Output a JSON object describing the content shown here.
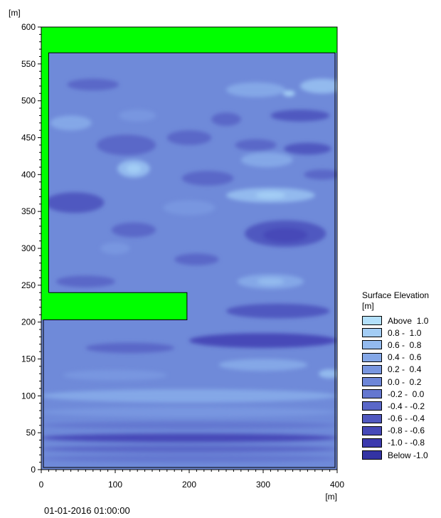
{
  "chart_data": {
    "type": "heatmap",
    "title": "",
    "xlabel": "[m]",
    "ylabel": "[m]",
    "xlim": [
      0,
      400
    ],
    "ylim": [
      0,
      600
    ],
    "x_ticks": [
      "0",
      "100",
      "200",
      "300",
      "400"
    ],
    "y_ticks": [
      "0",
      "50",
      "100",
      "150",
      "200",
      "250",
      "300",
      "350",
      "400",
      "450",
      "500",
      "550",
      "600"
    ],
    "legend_placement": "bottom-right",
    "legend_title": "Surface Elevation",
    "legend_unit": "[m]",
    "legend": [
      {
        "label": "Above  1.0",
        "color": "#b3e0fb"
      },
      {
        "label": "0.8 -  1.0",
        "color": "#a3cdf5"
      },
      {
        "label": "0.6 -  0.8",
        "color": "#93baee"
      },
      {
        "label": "0.4 -  0.6",
        "color": "#84a7e7"
      },
      {
        "label": "0.2 -  0.4",
        "color": "#7896e0"
      },
      {
        "label": "0.0 -  0.2",
        "color": "#6d86d8"
      },
      {
        "label": "-0.2 -  0.0",
        "color": "#6477d0"
      },
      {
        "label": "-0.4 - -0.2",
        "color": "#5a67c8"
      },
      {
        "label": "-0.6 - -0.4",
        "color": "#5058c0"
      },
      {
        "label": "-0.8 - -0.6",
        "color": "#4649b8"
      },
      {
        "label": "-1.0 - -0.8",
        "color": "#3c3aae"
      },
      {
        "label": "Below -1.0",
        "color": "#3333a3"
      }
    ],
    "land_color": "#00ff00",
    "land_regions": [
      {
        "name": "top-band",
        "x": [
          0,
          400
        ],
        "y": [
          565,
          600
        ]
      },
      {
        "name": "left-band",
        "x": [
          0,
          10
        ],
        "y": [
          240,
          600
        ]
      },
      {
        "name": "breakwater",
        "x": [
          0,
          197
        ],
        "y": [
          203,
          240
        ]
      }
    ],
    "water_base_color": "#6f8ad9",
    "eddies": [
      {
        "x": 70,
        "y": 522,
        "rx": 35,
        "ry": 8,
        "color": "#5a67c8"
      },
      {
        "x": 290,
        "y": 515,
        "rx": 40,
        "ry": 10,
        "color": "#84a7e7"
      },
      {
        "x": 380,
        "y": 520,
        "rx": 30,
        "ry": 10,
        "color": "#93baee"
      },
      {
        "x": 335,
        "y": 510,
        "rx": 8,
        "ry": 4,
        "color": "#a3cdf5"
      },
      {
        "x": 350,
        "y": 480,
        "rx": 40,
        "ry": 8,
        "color": "#5058c0"
      },
      {
        "x": 250,
        "y": 475,
        "rx": 20,
        "ry": 9,
        "color": "#5a67c8"
      },
      {
        "x": 40,
        "y": 470,
        "rx": 28,
        "ry": 10,
        "color": "#84a7e7"
      },
      {
        "x": 130,
        "y": 480,
        "rx": 25,
        "ry": 8,
        "color": "#7896e0"
      },
      {
        "x": 115,
        "y": 440,
        "rx": 40,
        "ry": 14,
        "color": "#5a67c8"
      },
      {
        "x": 200,
        "y": 450,
        "rx": 30,
        "ry": 10,
        "color": "#5a67c8"
      },
      {
        "x": 290,
        "y": 440,
        "rx": 28,
        "ry": 8,
        "color": "#5a67c8"
      },
      {
        "x": 360,
        "y": 435,
        "rx": 32,
        "ry": 8,
        "color": "#5058c0"
      },
      {
        "x": 125,
        "y": 408,
        "rx": 22,
        "ry": 12,
        "color": "#93baee"
      },
      {
        "x": 125,
        "y": 408,
        "rx": 10,
        "ry": 6,
        "color": "#a3cdf5"
      },
      {
        "x": 305,
        "y": 420,
        "rx": 35,
        "ry": 10,
        "color": "#84a7e7"
      },
      {
        "x": 380,
        "y": 400,
        "rx": 25,
        "ry": 7,
        "color": "#5a67c8"
      },
      {
        "x": 225,
        "y": 395,
        "rx": 35,
        "ry": 10,
        "color": "#5a67c8"
      },
      {
        "x": 310,
        "y": 372,
        "rx": 60,
        "ry": 10,
        "color": "#93baee"
      },
      {
        "x": 310,
        "y": 372,
        "rx": 20,
        "ry": 5,
        "color": "#a3cdf5"
      },
      {
        "x": 45,
        "y": 362,
        "rx": 40,
        "ry": 14,
        "color": "#5058c0"
      },
      {
        "x": 200,
        "y": 355,
        "rx": 35,
        "ry": 10,
        "color": "#7896e0"
      },
      {
        "x": 330,
        "y": 320,
        "rx": 55,
        "ry": 18,
        "color": "#5058c0"
      },
      {
        "x": 330,
        "y": 318,
        "rx": 30,
        "ry": 10,
        "color": "#4649b8"
      },
      {
        "x": 125,
        "y": 325,
        "rx": 30,
        "ry": 10,
        "color": "#5a67c8"
      },
      {
        "x": 100,
        "y": 300,
        "rx": 20,
        "ry": 8,
        "color": "#7896e0"
      },
      {
        "x": 210,
        "y": 285,
        "rx": 30,
        "ry": 8,
        "color": "#5a67c8"
      },
      {
        "x": 310,
        "y": 255,
        "rx": 45,
        "ry": 10,
        "color": "#84a7e7"
      },
      {
        "x": 310,
        "y": 255,
        "rx": 18,
        "ry": 5,
        "color": "#93baee"
      },
      {
        "x": 60,
        "y": 255,
        "rx": 40,
        "ry": 8,
        "color": "#5a67c8"
      },
      {
        "x": 320,
        "y": 215,
        "rx": 70,
        "ry": 10,
        "color": "#5058c0"
      },
      {
        "x": 300,
        "y": 175,
        "rx": 100,
        "ry": 10,
        "color": "#4649b8"
      },
      {
        "x": 120,
        "y": 165,
        "rx": 60,
        "ry": 7,
        "color": "#5a67c8"
      },
      {
        "x": 300,
        "y": 142,
        "rx": 60,
        "ry": 8,
        "color": "#84a7e7"
      },
      {
        "x": 390,
        "y": 130,
        "rx": 15,
        "ry": 6,
        "color": "#93baee"
      },
      {
        "x": 100,
        "y": 128,
        "rx": 70,
        "ry": 7,
        "color": "#7896e0"
      },
      {
        "x": 200,
        "y": 100,
        "rx": 200,
        "ry": 9,
        "color": "#84a7e7"
      },
      {
        "x": 200,
        "y": 78,
        "rx": 200,
        "ry": 7,
        "color": "#7896e0"
      },
      {
        "x": 200,
        "y": 60,
        "rx": 200,
        "ry": 5,
        "color": "#6477d0"
      },
      {
        "x": 200,
        "y": 43,
        "rx": 200,
        "ry": 6,
        "color": "#4649b8"
      },
      {
        "x": 200,
        "y": 28,
        "rx": 200,
        "ry": 5,
        "color": "#5a67c8"
      },
      {
        "x": 200,
        "y": 15,
        "rx": 200,
        "ry": 5,
        "color": "#6477d0"
      }
    ]
  },
  "timestamp": "01-01-2016 01:00:00"
}
